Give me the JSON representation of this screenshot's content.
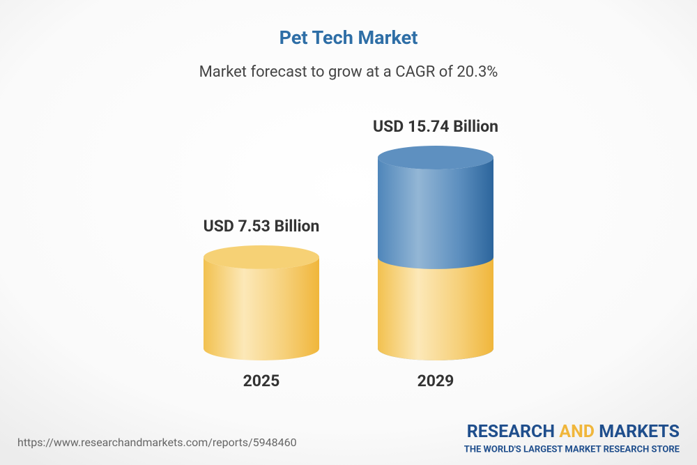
{
  "chart_data": {
    "type": "cylinder",
    "title": "Pet Tech Market",
    "subtitle": "Market forecast to grow at a CAGR of 20.3%",
    "categories": [
      "2025",
      "2029"
    ],
    "values": [
      7.53,
      15.74
    ],
    "value_labels": [
      "USD 7.53 Billion",
      "USD 15.74 Billion"
    ],
    "colors": [
      "#f2c150",
      "#3b75aa"
    ]
  },
  "footer": {
    "url": "https://www.researchandmarkets.com/reports/5948460",
    "brand": [
      "RESEARCH",
      "AND",
      "MARKETS"
    ],
    "tagline": "THE WORLD'S LARGEST MARKET RESEARCH STORE"
  }
}
